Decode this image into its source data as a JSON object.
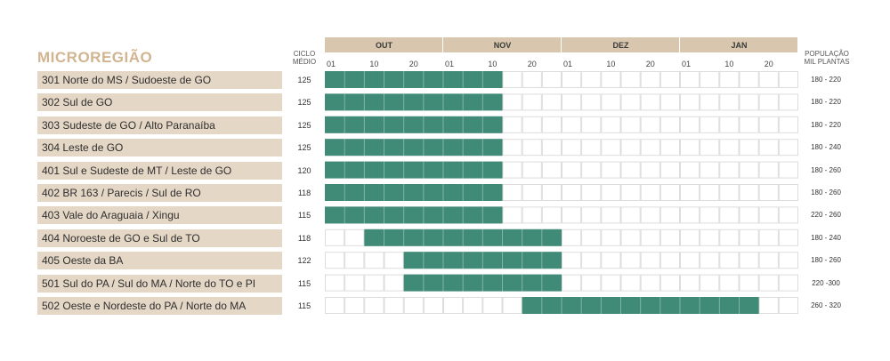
{
  "title": "MICROREGIÃO",
  "ciclo_header": "CICLO MÉDIO",
  "pop_header": "POPULAÇÃO MIL PLANTAS",
  "colors": {
    "bar": "#408b77",
    "header": "#d8c7ae",
    "label_bg": "#e5d7c6",
    "title": "#d2b490",
    "grid": "#dddddd"
  },
  "chart_data": {
    "type": "table",
    "months": [
      "OUT",
      "NOV",
      "DEZ",
      "JAN"
    ],
    "day_ticks": [
      "01",
      "10",
      "20"
    ],
    "columns_per_month": 6,
    "rows": [
      {
        "label": "301 Norte do MS / Sudoeste de GO",
        "ciclo": "125",
        "populacao": "180 - 220",
        "start_col": 0,
        "end_col": 9
      },
      {
        "label": "302 Sul de GO",
        "ciclo": "125",
        "populacao": "180 - 220",
        "start_col": 0,
        "end_col": 9
      },
      {
        "label": "303 Sudeste de GO / Alto Paranaíba",
        "ciclo": "125",
        "populacao": "180 - 220",
        "start_col": 0,
        "end_col": 9
      },
      {
        "label": "304 Leste de GO",
        "ciclo": "125",
        "populacao": "180 - 240",
        "start_col": 0,
        "end_col": 9
      },
      {
        "label": "401 Sul e Sudeste de MT / Leste de GO",
        "ciclo": "120",
        "populacao": "180 - 260",
        "start_col": 0,
        "end_col": 9
      },
      {
        "label": "402 BR 163 / Parecis / Sul de RO",
        "ciclo": "118",
        "populacao": "180 - 260",
        "start_col": 0,
        "end_col": 9
      },
      {
        "label": "403 Vale do Araguaia / Xingu",
        "ciclo": "115",
        "populacao": "220 - 260",
        "start_col": 0,
        "end_col": 9
      },
      {
        "label": "404 Noroeste de GO e Sul de TO",
        "ciclo": "118",
        "populacao": "180 - 240",
        "start_col": 2,
        "end_col": 12
      },
      {
        "label": "405 Oeste da BA",
        "ciclo": "122",
        "populacao": "180 - 260",
        "start_col": 4,
        "end_col": 12
      },
      {
        "label": "501 Sul do PA / Sul do MA / Norte do TO e PI",
        "ciclo": "115",
        "populacao": "220 -300",
        "start_col": 4,
        "end_col": 12
      },
      {
        "label": "502 Oeste e Nordeste do PA / Norte do MA",
        "ciclo": "115",
        "populacao": "260 - 320",
        "start_col": 10,
        "end_col": 22
      }
    ]
  }
}
